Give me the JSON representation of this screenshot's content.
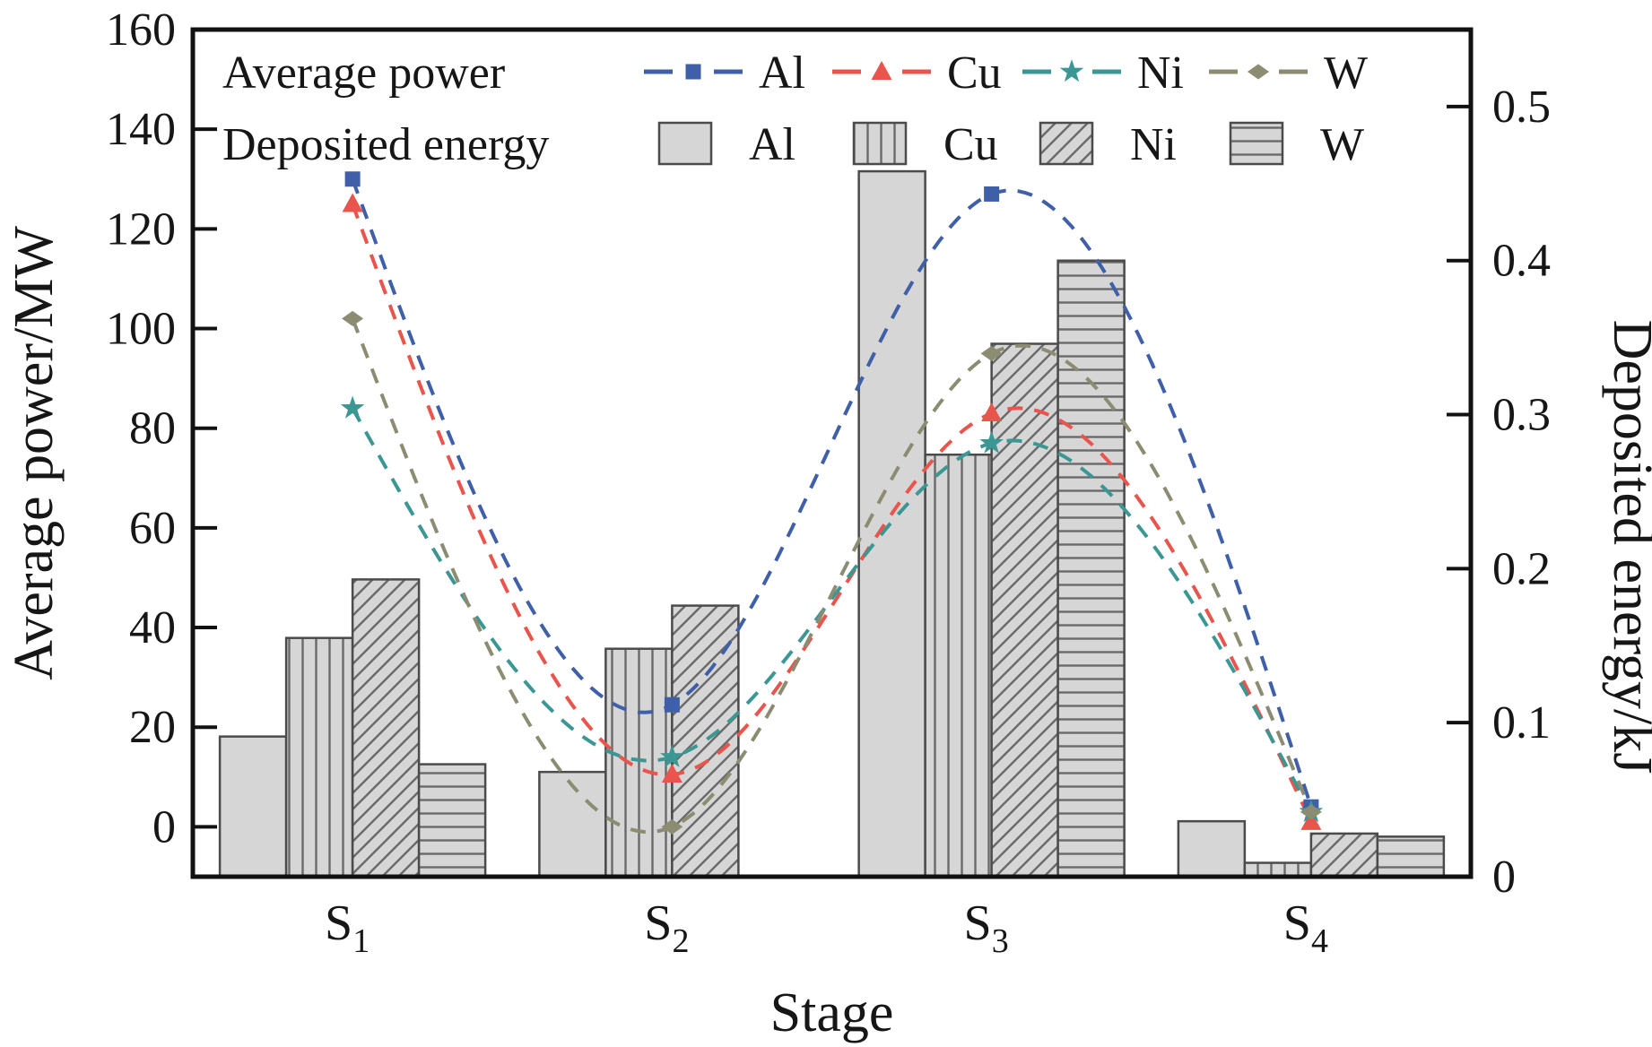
{
  "chart_data": {
    "type": "bar",
    "title": "",
    "xlabel": "Stage",
    "categories": [
      {
        "base": "S",
        "sub": "1"
      },
      {
        "base": "S",
        "sub": "2"
      },
      {
        "base": "S",
        "sub": "3"
      },
      {
        "base": "S",
        "sub": "4"
      }
    ],
    "left_axis": {
      "label": "Average power/MW",
      "min": -10,
      "max": 160,
      "tick_values": [
        0,
        20,
        40,
        60,
        80,
        100,
        120,
        140,
        160
      ],
      "tick_labels": [
        "0",
        "20",
        "40",
        "60",
        "80",
        "100",
        "120",
        "140",
        "160"
      ]
    },
    "right_axis": {
      "label": "Deposited energy/kJ",
      "min": 0,
      "max": 0.55,
      "tick_values": [
        0,
        0.1,
        0.2,
        0.3,
        0.4,
        0.5
      ],
      "tick_labels": [
        "0",
        "0.1",
        "0.2",
        "0.3",
        "0.4",
        "0.5"
      ]
    },
    "legend": {
      "line_group_label": "Average power",
      "bar_group_label": "Deposited energy",
      "entries": [
        "Al",
        "Cu",
        "Ni",
        "W"
      ]
    },
    "line_series": [
      {
        "name": "Al",
        "color": "#3f5fa8",
        "marker": "square",
        "values": [
          130,
          24.5,
          127,
          4
        ]
      },
      {
        "name": "Cu",
        "color": "#e9544d",
        "marker": "triangle",
        "values": [
          125,
          10.5,
          83,
          1
        ]
      },
      {
        "name": "Ni",
        "color": "#3a9793",
        "marker": "star",
        "values": [
          84,
          14,
          77,
          3
        ]
      },
      {
        "name": "W",
        "color": "#8c8c72",
        "marker": "diamond",
        "values": [
          102,
          0,
          95,
          3
        ]
      }
    ],
    "bar_series": [
      {
        "name": "Al",
        "hatch": "none",
        "values": [
          0.091,
          0.068,
          0.458,
          0.036
        ]
      },
      {
        "name": "Cu",
        "hatch": "vertical",
        "values": [
          0.155,
          0.148,
          0.274,
          0.009
        ]
      },
      {
        "name": "Ni",
        "hatch": "diagonal",
        "values": [
          0.193,
          0.176,
          0.346,
          0.028
        ]
      },
      {
        "name": "W",
        "hatch": "horizontal",
        "values": [
          0.073,
          0,
          0.4,
          0.026
        ]
      }
    ],
    "bar_style": {
      "fill": "#d6d6d6",
      "edge": "#4b4b4b",
      "hatch_color": "#6a6a6a"
    },
    "frame_color": "#111111",
    "background": "#ffffff",
    "grid": "off",
    "legend_position": "top-inside"
  }
}
